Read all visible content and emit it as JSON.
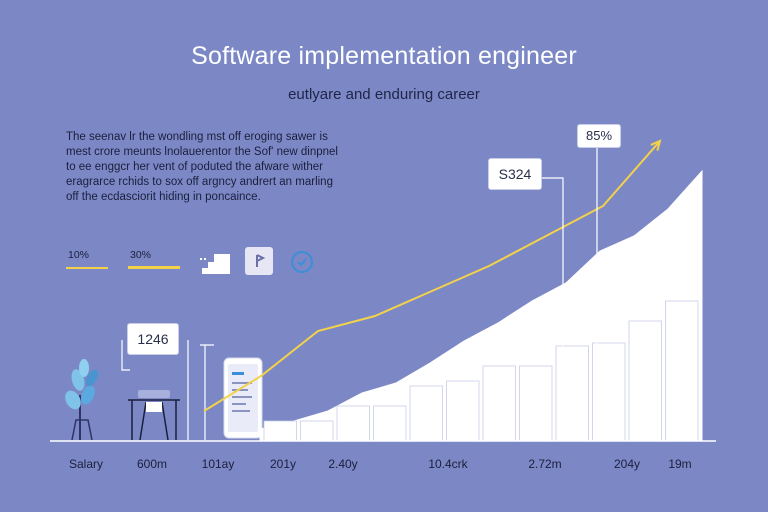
{
  "header": {
    "title": "Software implementation engineer",
    "subtitle": "eutlyare and enduring career"
  },
  "description": [
    "The seenav lr the wondling mst off eroging sawer is",
    "mest crore meunts lnolauerentor the Sof' new dinpnel",
    "to ee enggcr her vent of poduted the afware wither",
    "eragrarce rchids to sox off argncy andrert an marling",
    "off the ecdasciorit hiding in poncaince."
  ],
  "legend": {
    "item1": "10%",
    "item2": "30%"
  },
  "callouts": {
    "top_percent": "85%",
    "peak_value": "S324",
    "low_value": "1246"
  },
  "chart_data": {
    "type": "bar",
    "categories": [
      "Salary",
      "600m",
      "101ay",
      "201y",
      "2.40y",
      "10.4crk",
      "2.72m",
      "204y",
      "19m"
    ],
    "bars": [
      20,
      20,
      35,
      35,
      55,
      60,
      75,
      75,
      95,
      98,
      120,
      140
    ],
    "area_profile": [
      12,
      20,
      30,
      48,
      58,
      78,
      100,
      118,
      140,
      158,
      190,
      205,
      232,
      270
    ],
    "trend_line": [
      30,
      65,
      110,
      125,
      150,
      175,
      205,
      235,
      300
    ],
    "colors": {
      "background": "#7c88c6",
      "bars": "#ffffff",
      "trend": "#f3d24a",
      "text": "#1b1f3c"
    },
    "grid": false
  },
  "icons": [
    "plant-icon",
    "desk-chair-icon",
    "tablet-document-icon",
    "stairs-chip-icon",
    "flag-chip-icon",
    "check-circle-icon"
  ]
}
